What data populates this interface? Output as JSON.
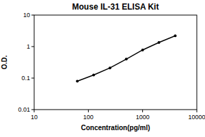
{
  "chart_data": {
    "type": "line",
    "title": "Mouse IL-31 ELISA Kit",
    "x_label": "Concentration(pg/ml)",
    "y_label": "O.D.",
    "x": [
      62.5,
      125,
      250,
      500,
      1000,
      2000,
      4000
    ],
    "values": [
      0.08,
      0.125,
      0.21,
      0.4,
      0.78,
      1.35,
      2.2
    ],
    "color": "#000000",
    "marker": "circle",
    "log": true,
    "grid": false,
    "xlim": [
      10,
      10000
    ],
    "xticks": [
      10,
      100,
      1000,
      10000
    ],
    "ylim": [
      0.01,
      10
    ],
    "yticks": [
      0.01,
      0.1,
      1,
      10
    ]
  }
}
